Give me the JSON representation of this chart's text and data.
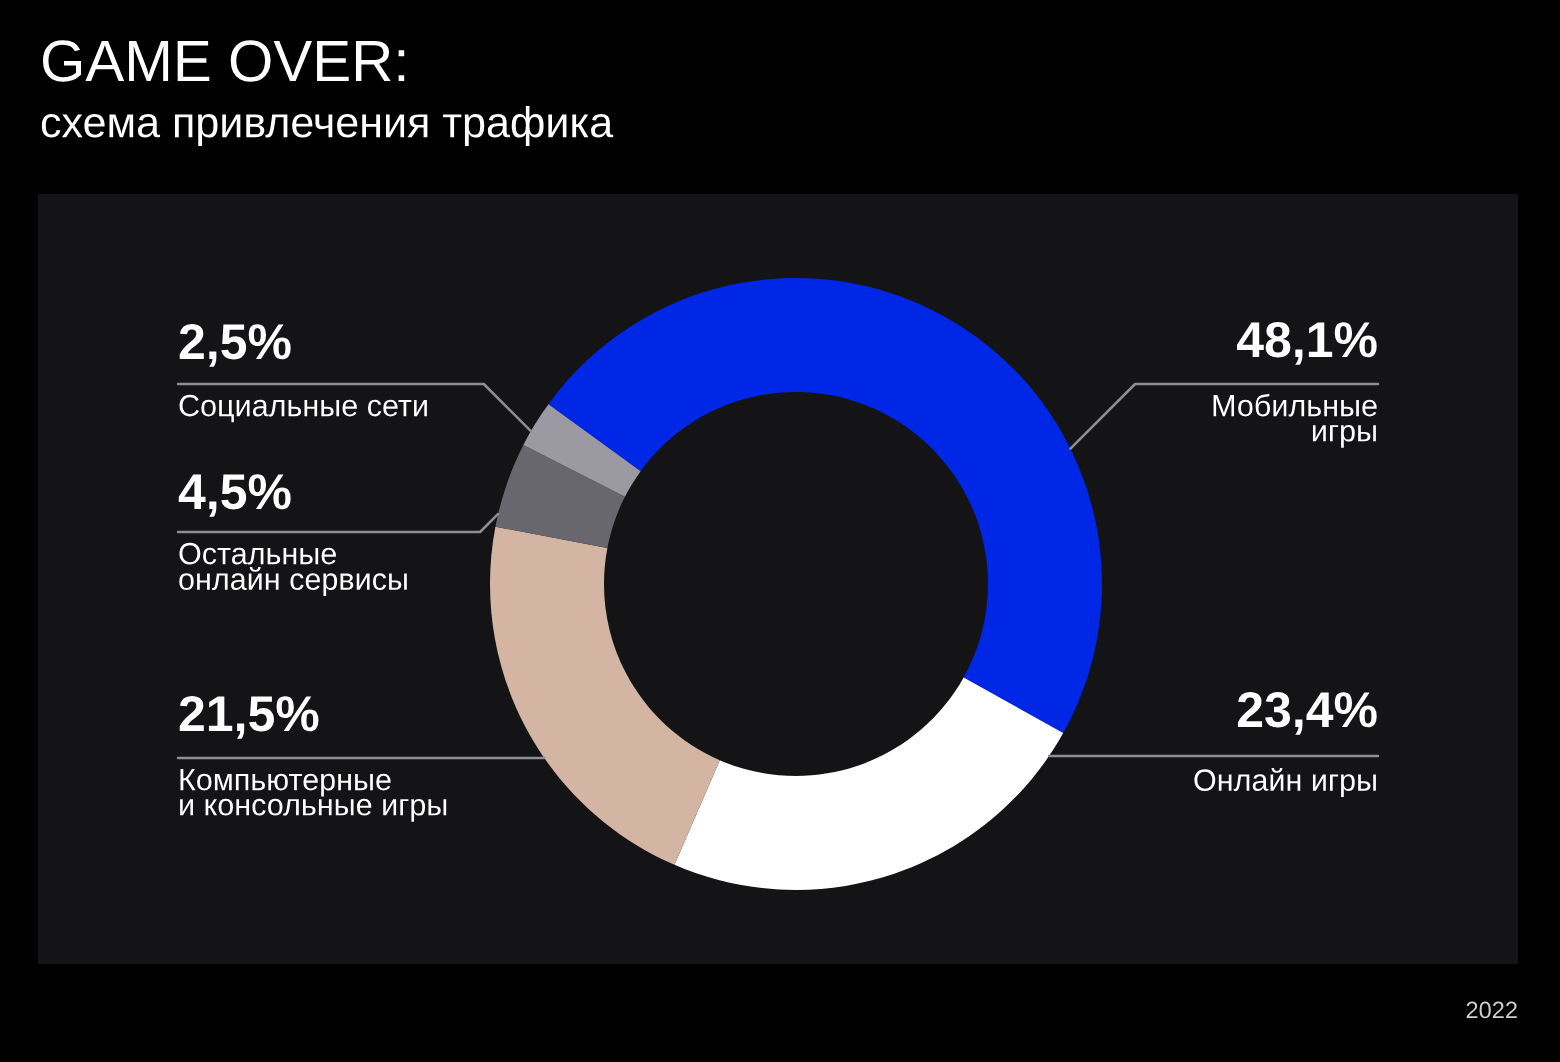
{
  "chart_data": {
    "type": "donut",
    "title": "GAME OVER:",
    "subtitle": "схема привлечения трафика",
    "categories": [
      "Мобильные\nигры",
      "Онлайн игры",
      "Компьютерные\nи консольные игры",
      "Остальные\nонлайн сервисы",
      "Социальные сети"
    ],
    "values": [
      48.1,
      23.4,
      21.5,
      4.5,
      2.5
    ],
    "colors": [
      "#0027e6",
      "#ffffff",
      "#d4b4a2",
      "#68676e",
      "#9b9aa2"
    ],
    "value_labels": [
      "48,1%",
      "23,4%",
      "21,5%",
      "4,5%",
      "2,5%"
    ],
    "annotations": [
      "2022"
    ]
  }
}
